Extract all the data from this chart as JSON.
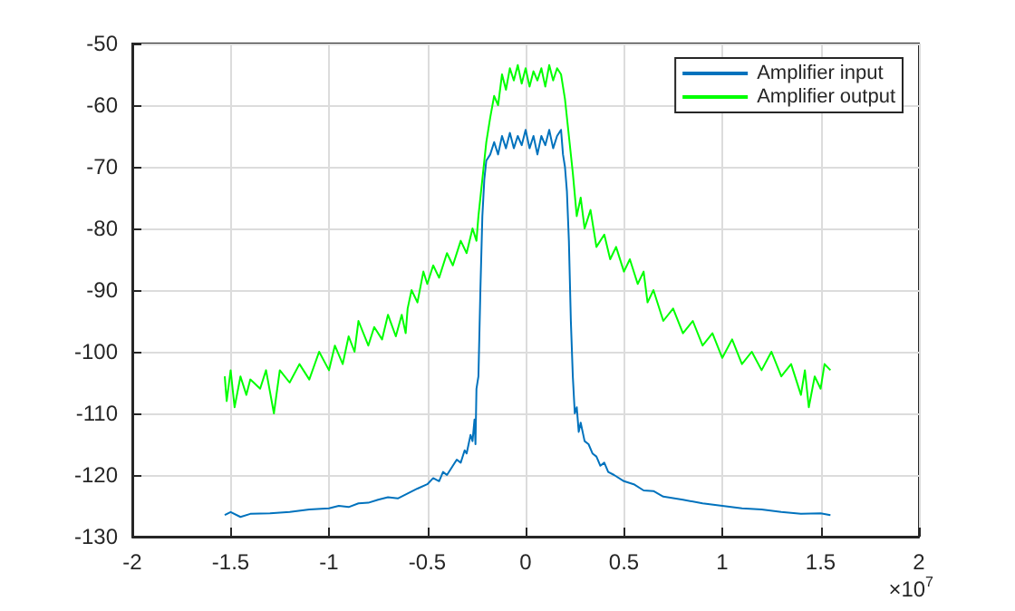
{
  "chart_data": {
    "type": "line",
    "xlim": [
      -2,
      2
    ],
    "xticks": [
      -2,
      -1.5,
      -1,
      -0.5,
      0,
      0.5,
      1,
      1.5,
      2
    ],
    "ylim": [
      -130,
      -50
    ],
    "yticks": [
      -130,
      -120,
      -110,
      -100,
      -90,
      -80,
      -70,
      -60,
      -50
    ],
    "grid": true,
    "legend": "top right",
    "marker": "none",
    "line_style": "solid",
    "annotations": [
      "×10$^{7}$"
    ],
    "series": [
      {
        "name": "Amplifier input",
        "color": "#0072bd",
        "x": [
          -1.53,
          -1.5,
          -1.45,
          -1.4,
          -1.3,
          -1.2,
          -1.1,
          -1.0,
          -0.95,
          -0.9,
          -0.85,
          -0.8,
          -0.75,
          -0.7,
          -0.65,
          -0.6,
          -0.55,
          -0.5,
          -0.47,
          -0.44,
          -0.42,
          -0.4,
          -0.37,
          -0.35,
          -0.33,
          -0.31,
          -0.3,
          -0.28,
          -0.27,
          -0.26,
          -0.255,
          -0.25,
          -0.24,
          -0.23,
          -0.22,
          -0.21,
          -0.2,
          -0.18,
          -0.16,
          -0.14,
          -0.12,
          -0.1,
          -0.08,
          -0.06,
          -0.04,
          -0.02,
          0,
          0.02,
          0.04,
          0.06,
          0.08,
          0.1,
          0.12,
          0.14,
          0.16,
          0.18,
          0.19,
          0.2,
          0.21,
          0.22,
          0.23,
          0.24,
          0.25,
          0.26,
          0.27,
          0.28,
          0.3,
          0.32,
          0.34,
          0.36,
          0.38,
          0.4,
          0.42,
          0.45,
          0.5,
          0.55,
          0.6,
          0.65,
          0.7,
          0.8,
          0.9,
          1.0,
          1.1,
          1.2,
          1.3,
          1.4,
          1.5,
          1.55
        ],
        "values": [
          -126.5,
          -126,
          -126.8,
          -126.3,
          -126.2,
          -126,
          -125.6,
          -125.4,
          -125,
          -125.2,
          -124.6,
          -124.5,
          -124,
          -123.6,
          -123.8,
          -123,
          -122.2,
          -121.5,
          -120.5,
          -121,
          -119.5,
          -120,
          -118.5,
          -117.5,
          -118,
          -116,
          -116.5,
          -113.5,
          -114.5,
          -111,
          -115,
          -106,
          -104,
          -90,
          -78,
          -72,
          -69,
          -68,
          -66,
          -68,
          -65,
          -67,
          -64.5,
          -67,
          -65,
          -66.5,
          -64,
          -67,
          -65,
          -68,
          -65,
          -66.5,
          -64,
          -67,
          -65,
          -64,
          -68,
          -70,
          -74,
          -82,
          -95,
          -104,
          -110,
          -109,
          -113,
          -111.5,
          -114.5,
          -115,
          -116.5,
          -117,
          -118.5,
          -118,
          -119.5,
          -120,
          -121,
          -121.5,
          -122.5,
          -122.6,
          -123.5,
          -124,
          -124.6,
          -125,
          -125.4,
          -125.6,
          -126,
          -126.3,
          -126.2,
          -126.5
        ]
      },
      {
        "name": "Amplifier output",
        "color": "#00ff00",
        "x": [
          -1.53,
          -1.52,
          -1.5,
          -1.48,
          -1.45,
          -1.42,
          -1.4,
          -1.35,
          -1.32,
          -1.28,
          -1.25,
          -1.2,
          -1.15,
          -1.1,
          -1.05,
          -1.0,
          -0.97,
          -0.93,
          -0.9,
          -0.87,
          -0.85,
          -0.8,
          -0.77,
          -0.73,
          -0.7,
          -0.66,
          -0.63,
          -0.61,
          -0.6,
          -0.58,
          -0.55,
          -0.52,
          -0.5,
          -0.47,
          -0.44,
          -0.4,
          -0.37,
          -0.33,
          -0.3,
          -0.27,
          -0.25,
          -0.24,
          -0.22,
          -0.2,
          -0.18,
          -0.16,
          -0.14,
          -0.12,
          -0.1,
          -0.08,
          -0.06,
          -0.04,
          -0.02,
          0,
          0.02,
          0.04,
          0.06,
          0.08,
          0.1,
          0.12,
          0.14,
          0.16,
          0.18,
          0.2,
          0.22,
          0.24,
          0.26,
          0.28,
          0.3,
          0.33,
          0.36,
          0.4,
          0.43,
          0.46,
          0.5,
          0.53,
          0.57,
          0.6,
          0.62,
          0.65,
          0.7,
          0.75,
          0.8,
          0.85,
          0.9,
          0.95,
          1.0,
          1.05,
          1.1,
          1.15,
          1.2,
          1.25,
          1.3,
          1.35,
          1.4,
          1.42,
          1.44,
          1.47,
          1.5,
          1.52,
          1.55
        ],
        "values": [
          -104,
          -108,
          -103,
          -109,
          -104,
          -107,
          -104.5,
          -106,
          -103,
          -110,
          -103,
          -105,
          -102,
          -104.5,
          -100,
          -103,
          -99,
          -102,
          -97.5,
          -100,
          -95,
          -99,
          -96,
          -98,
          -94,
          -97.5,
          -94,
          -97,
          -93,
          -90,
          -92,
          -87,
          -89,
          -86,
          -88,
          -84,
          -86,
          -82,
          -84,
          -80,
          -82,
          -78,
          -72,
          -66,
          -62,
          -58.5,
          -60,
          -55,
          -57.5,
          -54,
          -56,
          -53.5,
          -56.5,
          -54,
          -57,
          -54.5,
          -56,
          -54,
          -57,
          -53.5,
          -56,
          -54,
          -55,
          -59,
          -65,
          -71,
          -78,
          -75,
          -80,
          -77,
          -83,
          -81,
          -85,
          -83,
          -87,
          -85,
          -89,
          -87,
          -92,
          -90,
          -95,
          -93,
          -97,
          -95,
          -99,
          -97,
          -101,
          -98,
          -102,
          -100,
          -103,
          -100,
          -104,
          -102,
          -107,
          -103,
          -109,
          -104,
          -106,
          -102,
          -103
        ]
      }
    ]
  }
}
